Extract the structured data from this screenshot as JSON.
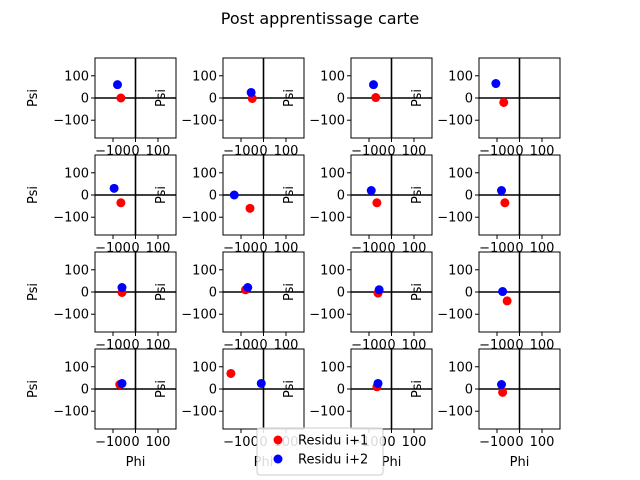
{
  "figure": {
    "title": "Post apprentissage carte"
  },
  "chart_data": {
    "type": "scatter",
    "grid_rows": 4,
    "grid_cols": 4,
    "xlabel": "Phi",
    "ylabel": "Psi",
    "xlim": [
      -180,
      180
    ],
    "ylim": [
      -180,
      180
    ],
    "xticks": [
      -100,
      0,
      100
    ],
    "yticks": [
      -100,
      0,
      100
    ],
    "xtick_labels": [
      "−100",
      "0",
      "100"
    ],
    "ytick_labels": [
      "−100",
      "0",
      "100"
    ],
    "series_meta": [
      {
        "name": "Residu i+1",
        "color": "#ff0000"
      },
      {
        "name": "Residu i+2",
        "color": "#0000ff"
      }
    ],
    "legend": {
      "placement": "bottom-center"
    },
    "subplots": [
      {
        "i1": [
          -65,
          0
        ],
        "i2": [
          -80,
          60
        ]
      },
      {
        "i1": [
          -50,
          -2
        ],
        "i2": [
          -55,
          25
        ]
      },
      {
        "i1": [
          -70,
          2
        ],
        "i2": [
          -80,
          60
        ]
      },
      {
        "i1": [
          -70,
          -20
        ],
        "i2": [
          -105,
          65
        ]
      },
      {
        "i1": [
          -65,
          -35
        ],
        "i2": [
          -95,
          30
        ]
      },
      {
        "i1": [
          -60,
          -60
        ],
        "i2": [
          -130,
          0
        ]
      },
      {
        "i1": [
          -65,
          -35
        ],
        "i2": [
          -90,
          20
        ]
      },
      {
        "i1": [
          -65,
          -35
        ],
        "i2": [
          -80,
          20
        ]
      },
      {
        "i1": [
          -60,
          -2
        ],
        "i2": [
          -60,
          20
        ]
      },
      {
        "i1": [
          -80,
          10
        ],
        "i2": [
          -70,
          20
        ]
      },
      {
        "i1": [
          -60,
          -5
        ],
        "i2": [
          -55,
          10
        ]
      },
      {
        "i1": [
          -55,
          -40
        ],
        "i2": [
          -75,
          2
        ]
      },
      {
        "i1": [
          -70,
          20
        ],
        "i2": [
          -60,
          25
        ]
      },
      {
        "i1": [
          -145,
          70
        ],
        "i2": [
          -10,
          25
        ]
      },
      {
        "i1": [
          -65,
          10
        ],
        "i2": [
          -60,
          25
        ]
      },
      {
        "i1": [
          -75,
          -15
        ],
        "i2": [
          -80,
          20
        ]
      }
    ]
  }
}
